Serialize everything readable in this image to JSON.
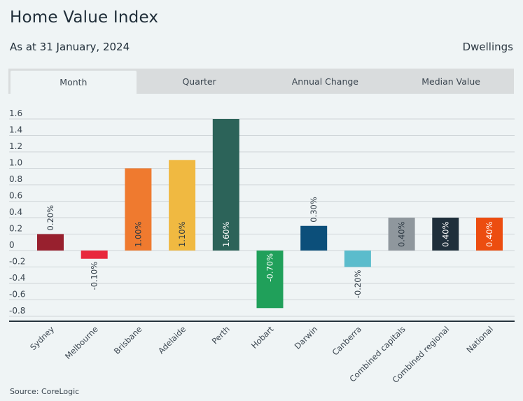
{
  "header": {
    "title": "Home Value Index",
    "subtitle": "As at 31 January, 2024",
    "dwelling_type": "Dwellings"
  },
  "tabs": [
    {
      "label": "Month",
      "active": true
    },
    {
      "label": "Quarter",
      "active": false
    },
    {
      "label": "Annual Change",
      "active": false
    },
    {
      "label": "Median Value",
      "active": false
    }
  ],
  "footer": {
    "source": "Source: CoreLogic"
  },
  "chart_data": {
    "type": "bar",
    "title": "Home Value Index",
    "xlabel": "",
    "ylabel": "",
    "ylim": [
      -0.8,
      1.6
    ],
    "yticks": [
      1.6,
      1.4,
      1.2,
      1.0,
      0.8,
      0.6,
      0.4,
      0.2,
      0,
      -0.2,
      -0.4,
      -0.6,
      -0.8
    ],
    "ytick_labels": [
      "1.6",
      "1.4",
      "1.2",
      "1.0",
      "0.8",
      "0.6",
      "0.4",
      "0.2",
      "0",
      "-0.2",
      "-0.4",
      "-0.6",
      "-0.8"
    ],
    "grid": true,
    "categories": [
      "Sydney",
      "Melbourne",
      "Brisbane",
      "Adelaide",
      "Perth",
      "Hobart",
      "Darwin",
      "Canberra",
      "Combined capitals",
      "Combined regional",
      "National"
    ],
    "values": [
      0.2,
      -0.1,
      1.0,
      1.1,
      1.6,
      -0.7,
      0.3,
      -0.2,
      0.4,
      0.4,
      0.4
    ],
    "data_labels": [
      "0.20%",
      "-0.10%",
      "1.00%",
      "1.10%",
      "1.60%",
      "-0.70%",
      "0.30%",
      "-0.20%",
      "0.40%",
      "0.40%",
      "0.40%"
    ],
    "colors": [
      "#98202e",
      "#e8283c",
      "#ef7a2f",
      "#f0b941",
      "#2c6359",
      "#20a05a",
      "#0c4f7a",
      "#5bbccc",
      "#8f979d",
      "#1f2f3b",
      "#ec4d10"
    ],
    "label_colors": [
      "#2c3842",
      "#2c3842",
      "#2c3842",
      "#2c3842",
      "#ffffff",
      "#ffffff",
      "#2c3842",
      "#2c3842",
      "#2c3842",
      "#ffffff",
      "#ffffff"
    ],
    "label_inside": [
      false,
      false,
      true,
      true,
      true,
      true,
      false,
      false,
      true,
      true,
      true
    ]
  }
}
